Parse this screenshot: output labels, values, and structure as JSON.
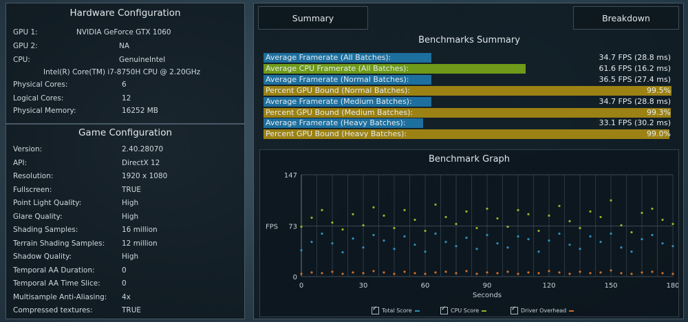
{
  "hardware": {
    "title": "Hardware Configuration",
    "rows": [
      {
        "label": "GPU 1:",
        "value": "NVIDIA GeForce GTX 1060"
      },
      {
        "label": "GPU 2:",
        "value": "NA"
      },
      {
        "label": "CPU:",
        "value": "GenuineIntel"
      },
      {
        "label": "",
        "value": "Intel(R) Core(TM) i7-8750H CPU @ 2.20GHz"
      },
      {
        "label": "Physical Cores:",
        "value": "6"
      },
      {
        "label": "Logical Cores:",
        "value": "12"
      },
      {
        "label": "Physical Memory:",
        "value": "16252  MB"
      }
    ]
  },
  "game": {
    "title": "Game Configuration",
    "rows": [
      {
        "label": "Version:",
        "value": "2.40.28070"
      },
      {
        "label": "API:",
        "value": "DirectX 12"
      },
      {
        "label": "Resolution:",
        "value": "1920 x 1080"
      },
      {
        "label": "Fullscreen:",
        "value": "TRUE"
      },
      {
        "label": "Point Light Quality:",
        "value": "High"
      },
      {
        "label": "Glare Quality:",
        "value": "High"
      },
      {
        "label": "Shading Samples:",
        "value": "16 million"
      },
      {
        "label": "Terrain Shading Samples:",
        "value": "12 million"
      },
      {
        "label": "Shadow Quality:",
        "value": "High"
      },
      {
        "label": "Temporal AA Duration:",
        "value": "0"
      },
      {
        "label": "Temporal AA Time Slice:",
        "value": "0"
      },
      {
        "label": "Multisample Anti-Aliasing:",
        "value": "4x"
      },
      {
        "label": "Compressed textures:",
        "value": "TRUE"
      }
    ]
  },
  "tabs": {
    "summary": "Summary",
    "breakdown": "Breakdown"
  },
  "summary": {
    "title": "Benchmarks Summary",
    "rows": [
      {
        "label": "Average Framerate (All Batches):",
        "value": "34.7 FPS (28.8 ms)",
        "fraction": 0.41,
        "color": "#1d6f9e"
      },
      {
        "label": "Average CPU Framerate (All Batches):",
        "value": "61.6 FPS (16.2 ms)",
        "fraction": 0.64,
        "color": "#6f9a1a"
      },
      {
        "label": "Average Framerate (Normal Batches):",
        "value": "36.5 FPS (27.4 ms)",
        "fraction": 0.41,
        "color": "#1d6f9e"
      },
      {
        "label": "Percent GPU Bound (Normal Batches):",
        "value": "99.5%",
        "fraction": 0.995,
        "color": "#9c8214"
      },
      {
        "label": "Average Framerate (Medium Batches):",
        "value": "34.7 FPS (28.8 ms)",
        "fraction": 0.41,
        "color": "#1d6f9e"
      },
      {
        "label": "Percent GPU Bound (Medium Batches):",
        "value": "99.3%",
        "fraction": 0.993,
        "color": "#9c8214"
      },
      {
        "label": "Average Framerate (Heavy Batches):",
        "value": "33.1 FPS (30.2 ms)",
        "fraction": 0.39,
        "color": "#1d6f9e"
      },
      {
        "label": "Percent GPU Bound (Heavy Batches):",
        "value": "99.0%",
        "fraction": 0.99,
        "color": "#9c8214"
      }
    ]
  },
  "graph": {
    "title": "Benchmark Graph"
  },
  "chart_data": {
    "type": "scatter",
    "title": "Benchmark Graph",
    "xlabel": "Seconds",
    "ylabel": "FPS",
    "xlim": [
      0,
      180
    ],
    "ylim": [
      0,
      147
    ],
    "xticks": [
      "0",
      "30",
      "60",
      "90",
      "120",
      "150",
      "180"
    ],
    "yticks": [
      "0",
      "73",
      "147"
    ],
    "grid": true,
    "legend_position": "bottom",
    "series": [
      {
        "name": "Total Score",
        "color": "#2f8fc0",
        "x": [
          0,
          5,
          10,
          15,
          20,
          25,
          30,
          35,
          40,
          45,
          50,
          55,
          60,
          65,
          70,
          75,
          80,
          85,
          90,
          95,
          100,
          105,
          110,
          115,
          120,
          125,
          130,
          135,
          140,
          145,
          150,
          155,
          160,
          165,
          170,
          175,
          180
        ],
        "y": [
          38,
          50,
          62,
          48,
          35,
          55,
          42,
          60,
          52,
          40,
          58,
          46,
          36,
          62,
          50,
          44,
          56,
          40,
          60,
          48,
          42,
          58,
          54,
          36,
          52,
          62,
          46,
          40,
          58,
          50,
          62,
          42,
          36,
          54,
          60,
          48,
          44
        ]
      },
      {
        "name": "CPU Score",
        "color": "#8fb82a",
        "x": [
          0,
          5,
          10,
          15,
          20,
          25,
          30,
          35,
          40,
          45,
          50,
          55,
          60,
          65,
          70,
          75,
          80,
          85,
          90,
          95,
          100,
          105,
          110,
          115,
          120,
          125,
          130,
          135,
          140,
          145,
          150,
          155,
          160,
          165,
          170,
          175,
          180
        ],
        "y": [
          72,
          85,
          96,
          78,
          68,
          90,
          74,
          100,
          88,
          70,
          96,
          82,
          66,
          104,
          86,
          76,
          94,
          70,
          98,
          84,
          72,
          96,
          90,
          66,
          88,
          102,
          80,
          70,
          94,
          86,
          110,
          74,
          64,
          92,
          98,
          82,
          76
        ]
      },
      {
        "name": "Driver Overhead",
        "color": "#d07028",
        "x": [
          0,
          5,
          10,
          15,
          20,
          25,
          30,
          35,
          40,
          45,
          50,
          55,
          60,
          65,
          70,
          75,
          80,
          85,
          90,
          95,
          100,
          105,
          110,
          115,
          120,
          125,
          130,
          135,
          140,
          145,
          150,
          155,
          160,
          165,
          170,
          175,
          180
        ],
        "y": [
          4,
          6,
          5,
          7,
          4,
          6,
          5,
          8,
          6,
          4,
          7,
          5,
          4,
          6,
          7,
          5,
          8,
          4,
          6,
          5,
          7,
          4,
          6,
          5,
          8,
          6,
          4,
          7,
          5,
          6,
          9,
          5,
          4,
          6,
          7,
          5,
          4
        ]
      }
    ]
  }
}
